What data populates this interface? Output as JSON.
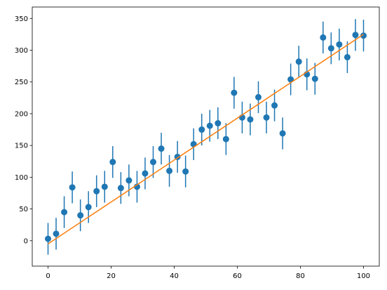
{
  "chart_data": {
    "type": "scatter",
    "xlim": [
      -5,
      105
    ],
    "xticks": [
      0,
      20,
      40,
      60,
      80,
      100
    ],
    "ylim": [
      -40,
      368
    ],
    "yticks": [
      0,
      50,
      100,
      150,
      200,
      250,
      300,
      350
    ],
    "grid": false,
    "series": [
      {
        "mode": "errorbar",
        "color": "#1f77b4",
        "x": [
          0,
          2.56,
          5.13,
          7.69,
          10.26,
          12.82,
          15.38,
          17.95,
          20.51,
          23.08,
          25.64,
          28.21,
          30.77,
          33.33,
          35.9,
          38.46,
          41.03,
          43.59,
          46.15,
          48.72,
          51.28,
          53.85,
          56.41,
          58.97,
          61.54,
          64.1,
          66.67,
          69.23,
          71.79,
          74.36,
          76.92,
          79.49,
          82.05,
          84.62,
          87.18,
          89.74,
          92.31,
          94.87,
          97.44,
          100
        ],
        "values": [
          3,
          11,
          45,
          84,
          40,
          53,
          78,
          85,
          124,
          83,
          95,
          85,
          106,
          124,
          145,
          110,
          132,
          109,
          152,
          175,
          181,
          185,
          160,
          233,
          194,
          191,
          226,
          194,
          213,
          169,
          254,
          282,
          262,
          255,
          320,
          303,
          309,
          289,
          324,
          323
        ],
        "errors": [
          25,
          25,
          25,
          25,
          25,
          25,
          25,
          25,
          25,
          25,
          25,
          25,
          25,
          25,
          25,
          25,
          25,
          25,
          25,
          25,
          25,
          25,
          25,
          25,
          25,
          25,
          25,
          25,
          25,
          25,
          25,
          25,
          25,
          25,
          25,
          25,
          25,
          25,
          25,
          25
        ]
      },
      {
        "mode": "line",
        "color": "#ff7f0e",
        "x": [
          0,
          100
        ],
        "values": [
          -5,
          325
        ]
      }
    ]
  }
}
